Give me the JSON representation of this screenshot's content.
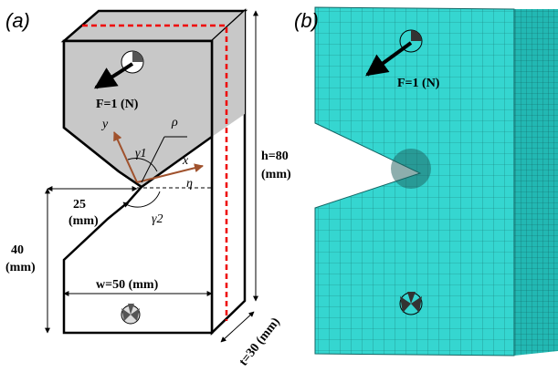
{
  "panel_a": {
    "label": "(a)",
    "force": "F=1 (N)",
    "axis_y": "y",
    "axis_x": "x",
    "rho": "ρ",
    "gamma1": "γ1",
    "gamma2": "γ2",
    "eta": "η",
    "notch_depth": "25",
    "notch_depth_unit": "(mm)",
    "lower_height": "40",
    "lower_height_unit": "(mm)",
    "width": "w=50 (mm)",
    "height": "h=80",
    "height_unit": "(mm)",
    "thickness": "t=30 (mm)"
  },
  "panel_b": {
    "label": "(b)",
    "force": "F=1 (N)"
  }
}
